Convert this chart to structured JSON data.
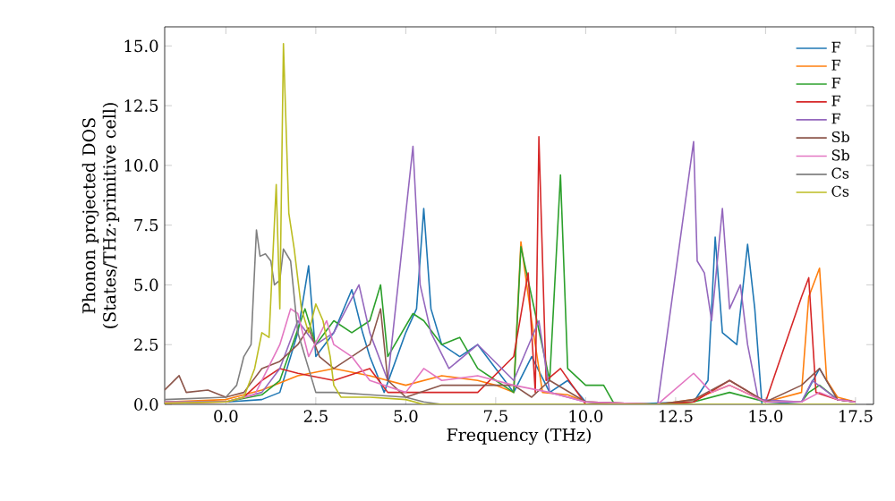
{
  "chart_data": {
    "type": "line",
    "xlabel": "Frequency (THz)",
    "ylabel": "Phonon projected DOS\n(States/THz·primitive cell)",
    "xlim": [
      -1.7,
      18.0
    ],
    "ylim": [
      0,
      15.8
    ],
    "xticks": [
      {
        "value": 0,
        "label": "0.0"
      },
      {
        "value": 2.5,
        "label": "2.5"
      },
      {
        "value": 5,
        "label": "5.0"
      },
      {
        "value": 7.5,
        "label": "7.5"
      },
      {
        "value": 10,
        "label": "10.0"
      },
      {
        "value": 12.5,
        "label": "12.5"
      },
      {
        "value": 15,
        "label": "15.0"
      },
      {
        "value": 17.5,
        "label": "17.5"
      }
    ],
    "yticks": [
      {
        "value": 0,
        "label": "0.0"
      },
      {
        "value": 2.5,
        "label": "2.5"
      },
      {
        "value": 5,
        "label": "5.0"
      },
      {
        "value": 7.5,
        "label": "7.5"
      },
      {
        "value": 10,
        "label": "10.0"
      },
      {
        "value": 12.5,
        "label": "12.5"
      },
      {
        "value": 15,
        "label": "15.0"
      }
    ],
    "legend": "top right",
    "grid": false,
    "marker": "none",
    "line_style": "solid",
    "series": [
      {
        "name": "F",
        "color": "#1f77b4",
        "x": [
          -1.7,
          0,
          1,
          1.5,
          2,
          2.3,
          2.5,
          3,
          3.5,
          3.8,
          4,
          4.4,
          5,
          5.3,
          5.5,
          5.7,
          6,
          6.5,
          7,
          7.5,
          8,
          8.5,
          9,
          9.5,
          10,
          11,
          13,
          13.4,
          13.6,
          13.8,
          14.2,
          14.5,
          14.7,
          14.9,
          16,
          16.5,
          17,
          17.5
        ],
        "values": [
          0.1,
          0.1,
          0.2,
          0.5,
          3,
          5.8,
          2,
          3,
          4.8,
          3,
          2,
          0.5,
          3,
          4,
          8.2,
          4,
          2.5,
          2,
          2.5,
          1.5,
          0.5,
          2,
          0.5,
          1,
          0.1,
          0,
          0.1,
          1,
          7,
          3,
          2.5,
          6.7,
          4,
          0,
          0.1,
          1.5,
          0.2,
          0.1
        ]
      },
      {
        "name": "F",
        "color": "#ff7f0e",
        "x": [
          -1.7,
          0,
          1,
          2,
          3,
          4,
          5,
          6,
          7,
          7.5,
          8,
          8.2,
          8.5,
          8.8,
          9.5,
          10,
          12,
          13,
          14,
          15,
          16,
          16.2,
          16.5,
          16.7,
          17,
          17.5
        ],
        "values": [
          0.1,
          0.2,
          0.6,
          1.2,
          1.5,
          1.2,
          0.8,
          1.2,
          1,
          0.8,
          0.5,
          6.8,
          3.5,
          0.5,
          0.4,
          0.1,
          0,
          0.2,
          0.8,
          0.1,
          0.5,
          4.5,
          5.7,
          1,
          0.3,
          0.1
        ]
      },
      {
        "name": "F",
        "color": "#2ca02c",
        "x": [
          -1.7,
          0,
          1,
          1.5,
          2.2,
          2.5,
          3,
          3.5,
          4,
          4.3,
          4.5,
          5.2,
          5.5,
          6,
          6.5,
          7,
          7.5,
          8,
          8.2,
          8.5,
          9,
          9.3,
          9.5,
          10,
          10.5,
          10.8,
          12,
          13,
          14,
          15,
          16,
          16.2,
          16.5,
          17,
          17.5
        ],
        "values": [
          0.1,
          0.1,
          0.4,
          1,
          4,
          2.5,
          3.5,
          3,
          3.5,
          5,
          2,
          3.8,
          3.5,
          2.5,
          2.8,
          1.5,
          1,
          0.5,
          6.6,
          4.5,
          1,
          9.6,
          1.5,
          0.8,
          0.8,
          0,
          0,
          0.1,
          0.5,
          0.1,
          0.1,
          0.5,
          0.8,
          0.2,
          0.1
        ]
      },
      {
        "name": "F",
        "color": "#d62728",
        "x": [
          -1.7,
          0,
          0.5,
          1,
          1.5,
          2,
          3,
          4,
          4.5,
          5.5,
          7,
          8,
          8.4,
          8.6,
          8.7,
          8.9,
          9.3,
          10,
          12,
          13,
          14,
          15,
          16,
          16.2,
          16.4,
          17,
          17.5
        ],
        "values": [
          0.05,
          0.1,
          0.3,
          1,
          1.5,
          1.3,
          1,
          1.5,
          0.5,
          0.5,
          0.5,
          2,
          5.5,
          0.5,
          11.2,
          1,
          1.5,
          0,
          0,
          0.1,
          1,
          0.1,
          4.5,
          5.3,
          0.5,
          0.2,
          0.1
        ]
      },
      {
        "name": "F",
        "color": "#9467bd",
        "x": [
          -1.7,
          0,
          1,
          1.5,
          2,
          2.5,
          3,
          3.7,
          4,
          4.5,
          5.2,
          5.4,
          5.7,
          6.2,
          7,
          8,
          8.7,
          9,
          10,
          12,
          13,
          13.1,
          13.3,
          13.5,
          13.8,
          14,
          14.3,
          14.5,
          14.8,
          16,
          16.3,
          17,
          17.5
        ],
        "values": [
          0.1,
          0.1,
          0.5,
          1.5,
          3.5,
          2.5,
          3,
          5,
          3,
          1,
          10.8,
          5,
          3,
          1.5,
          2.5,
          1,
          3.5,
          0.5,
          0.1,
          0,
          11,
          6,
          5.5,
          3.5,
          8.2,
          4,
          5,
          2.5,
          0.2,
          0.1,
          1,
          0.2,
          0.1
        ]
      },
      {
        "name": "Sb",
        "color": "#8c564b",
        "x": [
          -1.7,
          -1.3,
          -1.1,
          -0.5,
          0,
          0.5,
          1,
          1.5,
          2,
          2.3,
          2.6,
          3,
          3.5,
          4,
          4.3,
          4.5,
          5,
          6,
          7,
          8,
          8.5,
          9,
          10,
          12,
          13,
          14,
          15,
          16,
          16.5,
          17,
          17.5
        ],
        "values": [
          0.6,
          1.2,
          0.5,
          0.6,
          0.3,
          0.5,
          1.5,
          1.8,
          2.5,
          3.2,
          2,
          1.5,
          2,
          2.5,
          4,
          1,
          0.3,
          0.8,
          0.8,
          0.8,
          0.3,
          1,
          0.1,
          0,
          0.2,
          1,
          0.1,
          0.8,
          1.5,
          0.2,
          0.1
        ]
      },
      {
        "name": "Sb",
        "color": "#e377c2",
        "x": [
          -1.7,
          0,
          0.8,
          1.5,
          1.8,
          2,
          2.3,
          2.8,
          3,
          3.5,
          4,
          5,
          5.5,
          6,
          7,
          8,
          9,
          10,
          12,
          13,
          13.5,
          14,
          15,
          16,
          16.5,
          17,
          17.5
        ],
        "values": [
          0.1,
          0.1,
          0.4,
          2.5,
          4,
          3.8,
          2,
          3.5,
          2.5,
          2,
          1,
          0.5,
          1.5,
          1,
          1.2,
          0.8,
          0.5,
          0.1,
          0,
          1.3,
          0.5,
          0.8,
          0.1,
          0.1,
          0.5,
          0.2,
          0.1
        ]
      },
      {
        "name": "Cs",
        "color": "#7f7f7f",
        "x": [
          -1.7,
          0,
          0.3,
          0.5,
          0.7,
          0.85,
          0.95,
          1.1,
          1.25,
          1.35,
          1.5,
          1.6,
          1.8,
          2,
          2.5,
          3,
          4,
          5,
          5.5,
          6,
          8,
          10,
          12,
          14,
          16,
          17.5
        ],
        "values": [
          0.2,
          0.3,
          0.8,
          2,
          2.5,
          7.3,
          6.2,
          6.3,
          6,
          5,
          5.2,
          6.5,
          6,
          3,
          0.5,
          0.5,
          0.4,
          0.3,
          0.1,
          0,
          0,
          0,
          0,
          0,
          0,
          0
        ]
      },
      {
        "name": "Cs",
        "color": "#bcbd22",
        "x": [
          -1.7,
          0,
          0.5,
          0.8,
          1,
          1.2,
          1.4,
          1.5,
          1.6,
          1.75,
          1.9,
          2.1,
          2.3,
          2.5,
          2.7,
          2.9,
          3,
          3.2,
          3.5,
          4,
          5,
          5.5,
          6,
          8,
          10,
          12,
          14,
          16,
          17.5
        ],
        "values": [
          0.05,
          0.1,
          0.3,
          1.5,
          3,
          2.8,
          9.2,
          4,
          15.1,
          8,
          6.5,
          4,
          3,
          4.2,
          3.5,
          2,
          0.8,
          0.3,
          0.3,
          0.3,
          0.2,
          0,
          0,
          0,
          0,
          0,
          0,
          0,
          0
        ]
      }
    ]
  }
}
